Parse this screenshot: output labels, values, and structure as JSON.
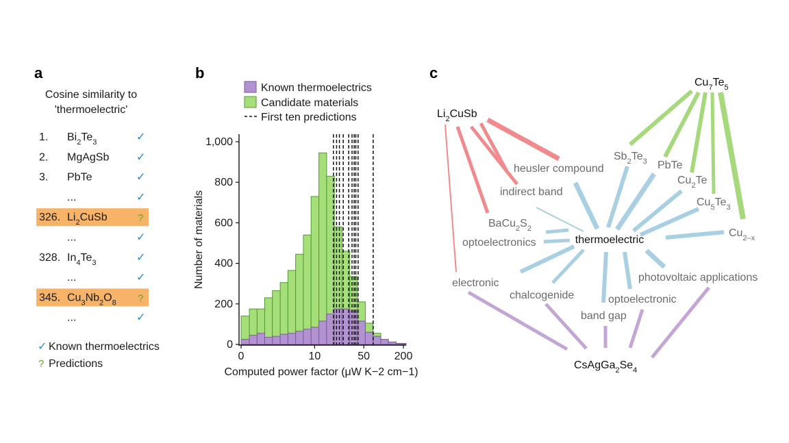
{
  "panel_a": {
    "label": "a",
    "title_line1": "Cosine similarity to",
    "title_line2": "'thermoelectric'",
    "rows": [
      {
        "rank": "1.",
        "pre": "Bi",
        "sub1": "2",
        "mid": "Te",
        "sub2": "3",
        "post": "",
        "status": "known",
        "highlight": false
      },
      {
        "rank": "2.",
        "pre": "MgAgSb",
        "sub1": "",
        "mid": "",
        "sub2": "",
        "post": "",
        "status": "known",
        "highlight": false
      },
      {
        "rank": "3.",
        "pre": "PbTe",
        "sub1": "",
        "mid": "",
        "sub2": "",
        "post": "",
        "status": "known",
        "highlight": false
      },
      {
        "rank": "",
        "pre": "...",
        "sub1": "",
        "mid": "",
        "sub2": "",
        "post": "",
        "status": "known",
        "highlight": false
      },
      {
        "rank": "326.",
        "pre": "Li",
        "sub1": "2",
        "mid": "CuSb",
        "sub2": "",
        "post": "",
        "status": "prediction",
        "highlight": true
      },
      {
        "rank": "",
        "pre": "...",
        "sub1": "",
        "mid": "",
        "sub2": "",
        "post": "",
        "status": "known",
        "highlight": false
      },
      {
        "rank": "328.",
        "pre": "In",
        "sub1": "4",
        "mid": "Te",
        "sub2": "3",
        "post": "",
        "status": "known",
        "highlight": false
      },
      {
        "rank": "",
        "pre": "...",
        "sub1": "",
        "mid": "",
        "sub2": "",
        "post": "",
        "status": "known",
        "highlight": false
      },
      {
        "rank": "345.",
        "pre": "Cu",
        "sub1": "3",
        "mid": "Nb",
        "sub2": "2",
        "post": "O8",
        "status": "prediction",
        "highlight": true
      },
      {
        "rank": "",
        "pre": "...",
        "sub1": "",
        "mid": "",
        "sub2": "",
        "post": "",
        "status": "known",
        "highlight": false
      }
    ],
    "legend_known": "Known thermoelectrics",
    "legend_pred": "Predictions",
    "check_symbol": "✓",
    "q_symbol": "?",
    "colors": {
      "highlight": "#f7b469",
      "check": "#2f86c2",
      "question": "#5aa82a"
    }
  },
  "chart_data": {
    "type": "bar",
    "label": "b",
    "xlabel": "Computed power factor (μW K−2 cm−1)",
    "ylabel": "Number of materials",
    "x_scale": "log",
    "bin_edges": [
      0.9,
      1.18,
      1.52,
      1.95,
      2.51,
      3.24,
      4.17,
      5.37,
      6.92,
      8.91,
      11.5,
      14.8,
      19.1,
      24.5,
      31.6,
      40.7,
      52.5,
      67.6,
      87.1,
      112,
      144,
      200
    ],
    "series": [
      {
        "name": "Known thermoelectrics",
        "color": "#b292d1",
        "values": [
          25,
          45,
          55,
          35,
          40,
          50,
          55,
          65,
          75,
          85,
          115,
          150,
          175,
          175,
          165,
          115,
          60,
          40,
          25,
          12,
          5
        ]
      },
      {
        "name": "Candidate materials",
        "color": "#a6df79",
        "values": [
          140,
          175,
          175,
          230,
          265,
          305,
          365,
          445,
          540,
          730,
          945,
          830,
          580,
          460,
          335,
          210,
          105,
          55,
          20,
          12,
          5
        ]
      }
    ],
    "prediction_lines_name": "First ten predictions",
    "prediction_lines": [
      18.5,
      20.5,
      22.5,
      25.5,
      30.5,
      34,
      36.5,
      38.5,
      41.5,
      68
    ],
    "xticks": [
      0,
      10,
      50,
      200
    ],
    "xtick_labels": [
      "0",
      "10",
      "50",
      "200"
    ],
    "yticks": [
      0,
      200,
      400,
      600,
      800,
      1000
    ],
    "ytick_labels": [
      "0",
      "200",
      "400",
      "600",
      "800",
      "1,000"
    ],
    "ylim": [
      0,
      1000
    ],
    "legend_position": "top-left"
  },
  "panel_c": {
    "label": "c",
    "center": "thermoelectric",
    "nodes": {
      "li2cusb": {
        "parts": [
          "Li",
          "_2",
          "CuSb"
        ],
        "dark": true
      },
      "cu7te5": {
        "parts": [
          "Cu",
          "_7",
          "Te",
          "_5"
        ],
        "dark": true
      },
      "csagga2se4": {
        "parts": [
          "CsAgGa",
          "_2",
          "Se",
          "_4"
        ],
        "dark": true
      },
      "heusler": {
        "parts": [
          "heusler compound"
        ]
      },
      "indirect": {
        "parts": [
          "indirect band"
        ]
      },
      "bacu2s2": {
        "parts": [
          "BaCu",
          "_2",
          "S",
          "_2"
        ]
      },
      "optoelectronics": {
        "parts": [
          "optoelectronics"
        ]
      },
      "electronic": {
        "parts": [
          "electronic"
        ]
      },
      "chalcogenide": {
        "parts": [
          "chalcogenide"
        ]
      },
      "bandgap": {
        "parts": [
          "band gap"
        ]
      },
      "optoelectronic": {
        "parts": [
          "optoelectronic"
        ]
      },
      "photovoltaic": {
        "parts": [
          "photovoltaic applications"
        ]
      },
      "sb2te3": {
        "parts": [
          "Sb",
          "_2",
          "Te",
          "_3"
        ]
      },
      "pbte": {
        "parts": [
          "PbTe"
        ]
      },
      "cu2te": {
        "parts": [
          "Cu",
          "_2",
          "Te"
        ]
      },
      "cu5te3": {
        "parts": [
          "Cu",
          "_5",
          "Te",
          "_3"
        ]
      },
      "cu2x": {
        "parts": [
          "Cu",
          "_2–x"
        ]
      }
    },
    "colors": {
      "red": "#f08a8c",
      "green": "#a5d97c",
      "blue": "#a8cfe2",
      "purple": "#c3a6d6"
    }
  }
}
